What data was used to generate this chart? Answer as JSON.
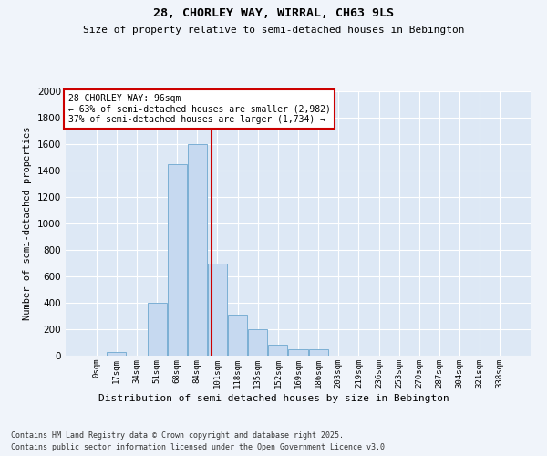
{
  "title1": "28, CHORLEY WAY, WIRRAL, CH63 9LS",
  "title2": "Size of property relative to semi-detached houses in Bebington",
  "xlabel": "Distribution of semi-detached houses by size in Bebington",
  "ylabel": "Number of semi-detached properties",
  "bar_labels": [
    "0sqm",
    "17sqm",
    "34sqm",
    "51sqm",
    "68sqm",
    "84sqm",
    "101sqm",
    "118sqm",
    "135sqm",
    "152sqm",
    "169sqm",
    "186sqm",
    "203sqm",
    "219sqm",
    "236sqm",
    "253sqm",
    "270sqm",
    "287sqm",
    "304sqm",
    "321sqm",
    "338sqm"
  ],
  "bar_values": [
    0,
    30,
    0,
    400,
    1450,
    1600,
    700,
    310,
    200,
    80,
    50,
    50,
    0,
    0,
    0,
    0,
    0,
    0,
    0,
    0,
    0
  ],
  "bar_color": "#c6d9f0",
  "bar_edge_color": "#7bafd4",
  "vline_color": "#cc0000",
  "annotation_text": "28 CHORLEY WAY: 96sqm\n← 63% of semi-detached houses are smaller (2,982)\n37% of semi-detached houses are larger (1,734) →",
  "annotation_box_color": "#ffffff",
  "annotation_box_edge": "#cc0000",
  "ylim": [
    0,
    2000
  ],
  "yticks": [
    0,
    200,
    400,
    600,
    800,
    1000,
    1200,
    1400,
    1600,
    1800,
    2000
  ],
  "background_color": "#dde8f5",
  "fig_background": "#f0f4fa",
  "footer_line1": "Contains HM Land Registry data © Crown copyright and database right 2025.",
  "footer_line2": "Contains public sector information licensed under the Open Government Licence v3.0."
}
